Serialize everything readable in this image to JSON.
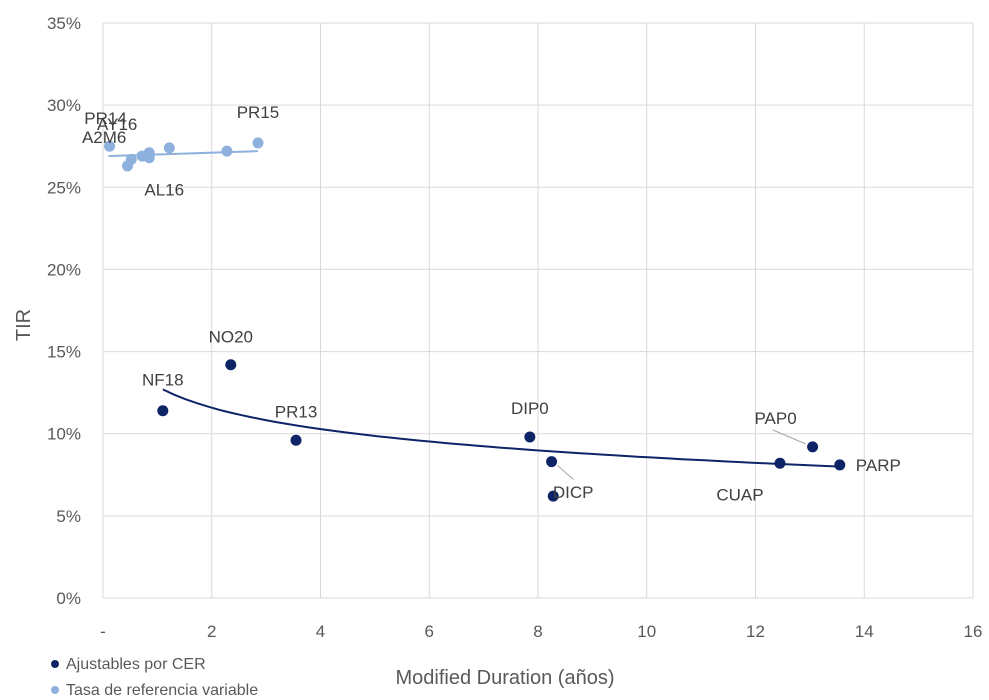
{
  "chart_data": {
    "type": "scatter",
    "xlabel": "Modified Duration (años)",
    "ylabel": "TIR",
    "xlim": [
      0,
      16
    ],
    "ylim": [
      0,
      0.35
    ],
    "x_ticks": [
      {
        "value": 0,
        "label": "-"
      },
      {
        "value": 2,
        "label": "2"
      },
      {
        "value": 4,
        "label": "4"
      },
      {
        "value": 6,
        "label": "6"
      },
      {
        "value": 8,
        "label": "8"
      },
      {
        "value": 10,
        "label": "10"
      },
      {
        "value": 12,
        "label": "12"
      },
      {
        "value": 14,
        "label": "14"
      },
      {
        "value": 16,
        "label": "16"
      }
    ],
    "y_ticks": [
      {
        "value": 0,
        "label": "0%"
      },
      {
        "value": 0.05,
        "label": "5%"
      },
      {
        "value": 0.1,
        "label": "10%"
      },
      {
        "value": 0.15,
        "label": "15%"
      },
      {
        "value": 0.2,
        "label": "20%"
      },
      {
        "value": 0.25,
        "label": "25%"
      },
      {
        "value": 0.3,
        "label": "30%"
      },
      {
        "value": 0.35,
        "label": "35%"
      }
    ],
    "grid": true,
    "legend_position": "bottom-left",
    "series": [
      {
        "name": "Ajustables por CER",
        "color": "#0d2566",
        "points": [
          {
            "x": 1.1,
            "y": 0.114,
            "label": "NF18"
          },
          {
            "x": 2.35,
            "y": 0.142,
            "label": "NO20"
          },
          {
            "x": 3.55,
            "y": 0.096,
            "label": "PR13"
          },
          {
            "x": 7.85,
            "y": 0.098,
            "label": "DIP0"
          },
          {
            "x": 8.25,
            "y": 0.083,
            "label": ""
          },
          {
            "x": 8.28,
            "y": 0.062,
            "label": "DICP"
          },
          {
            "x": 12.45,
            "y": 0.082,
            "label": "CUAP"
          },
          {
            "x": 13.05,
            "y": 0.092,
            "label": "PAP0"
          },
          {
            "x": 13.55,
            "y": 0.081,
            "label": "PARP"
          }
        ],
        "trendline": {
          "type": "log",
          "x_from": 1.1,
          "x_to": 13.55,
          "y_from": 0.127,
          "y_to": 0.08
        }
      },
      {
        "name": "Tasa de referencia variable",
        "color": "#8eb0dc",
        "points": [
          {
            "x": 0.12,
            "y": 0.275,
            "label": "PR14"
          },
          {
            "x": 0.45,
            "y": 0.263,
            "label": ""
          },
          {
            "x": 0.52,
            "y": 0.267,
            "label": ""
          },
          {
            "x": 0.72,
            "y": 0.269,
            "label": "A2M6"
          },
          {
            "x": 0.85,
            "y": 0.271,
            "label": "AY16"
          },
          {
            "x": 0.85,
            "y": 0.268,
            "label": "AL16"
          },
          {
            "x": 1.22,
            "y": 0.274,
            "label": ""
          },
          {
            "x": 2.28,
            "y": 0.272,
            "label": ""
          },
          {
            "x": 2.85,
            "y": 0.277,
            "label": "PR15"
          }
        ],
        "trendline": {
          "type": "linear",
          "x_from": 0.1,
          "x_to": 2.85,
          "y_from": 0.269,
          "y_to": 0.272
        }
      }
    ]
  }
}
